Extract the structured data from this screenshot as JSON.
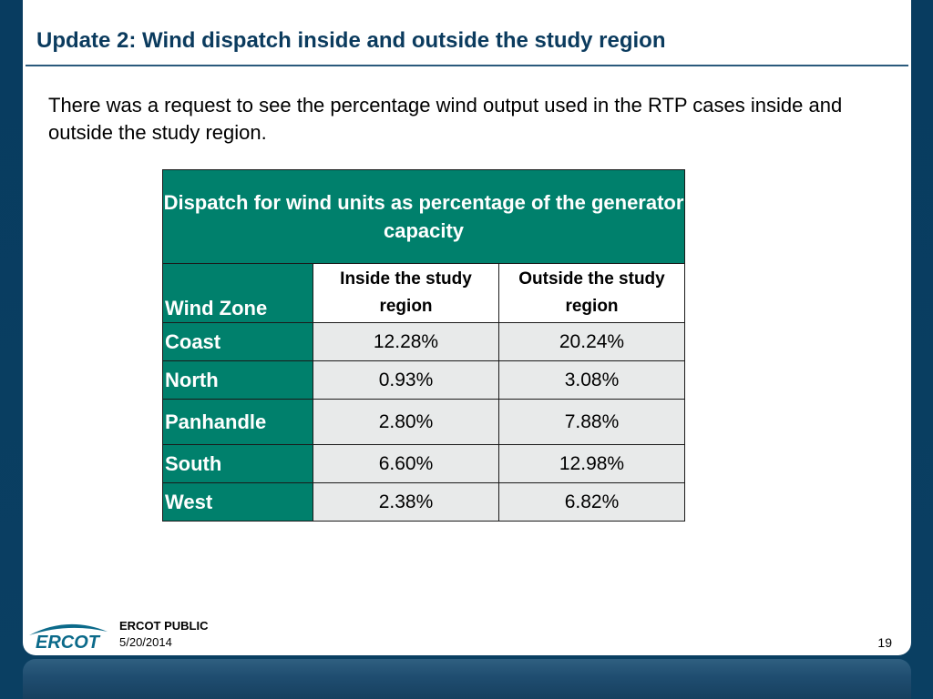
{
  "slide": {
    "title": "Update 2: Wind dispatch inside and outside the study region",
    "intro": "There was a request to see the percentage wind output used in the RTP cases inside and outside the study region."
  },
  "table": {
    "caption": "Dispatch for wind units as percentage of the generator capacity",
    "zone_header": "Wind Zone",
    "inside_header": "Inside the study region",
    "outside_header": "Outside the study region",
    "rows": [
      {
        "zone": "Coast",
        "inside": "12.28%",
        "outside": "20.24%"
      },
      {
        "zone": "North",
        "inside": "0.93%",
        "outside": "3.08%"
      },
      {
        "zone": "Panhandle",
        "inside": "2.80%",
        "outside": "7.88%"
      },
      {
        "zone": "South",
        "inside": "6.60%",
        "outside": "12.98%"
      },
      {
        "zone": "West",
        "inside": "2.38%",
        "outside": "6.82%"
      }
    ],
    "colors": {
      "header_fill": "#00806c",
      "value_fill": "#e8eaea"
    }
  },
  "footer": {
    "logo_text": "ERCOT",
    "label": "ERCOT PUBLIC",
    "date": "5/20/2014",
    "page_number": "19"
  },
  "theme": {
    "frame_color": "#083c60",
    "title_color": "#0b3b5e"
  }
}
